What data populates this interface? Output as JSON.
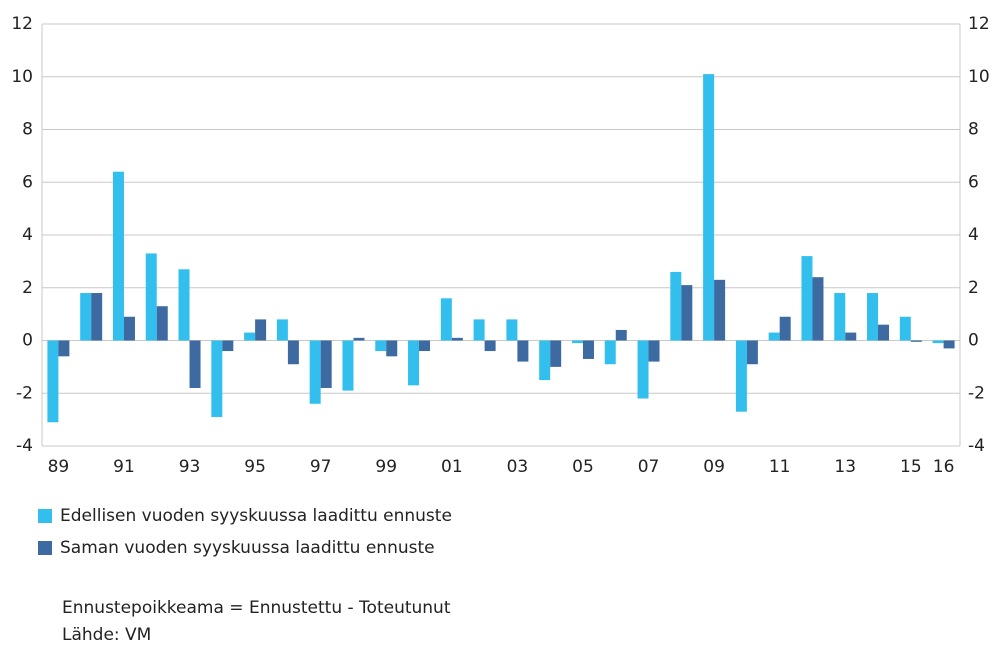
{
  "chart_data": {
    "type": "bar",
    "categories": [
      "89",
      null,
      "91",
      null,
      "93",
      null,
      "95",
      null,
      "97",
      null,
      "99",
      null,
      "01",
      null,
      "03",
      null,
      "05",
      null,
      "07",
      null,
      "09",
      null,
      "11",
      null,
      "13",
      null,
      "15",
      "16"
    ],
    "series": [
      {
        "name": "Edellisen vuoden syyskuussa laadittu ennuste",
        "color": "#33bfee",
        "values": [
          -3.1,
          1.8,
          6.4,
          3.3,
          2.7,
          -2.9,
          0.3,
          0.8,
          -2.4,
          -1.9,
          -0.4,
          -1.7,
          1.6,
          0.8,
          0.8,
          -1.5,
          -0.1,
          -0.9,
          -2.2,
          2.6,
          10.1,
          -2.7,
          0.3,
          3.2,
          1.8,
          1.8,
          0.9,
          -0.1
        ]
      },
      {
        "name": "Saman vuoden syyskuussa laadittu ennuste",
        "color": "#3d6aa0",
        "values": [
          -0.6,
          1.8,
          0.9,
          1.3,
          -1.8,
          -0.4,
          0.8,
          -0.9,
          -1.8,
          0.1,
          -0.6,
          -0.4,
          0.1,
          -0.4,
          -0.8,
          -1.0,
          -0.7,
          0.4,
          -0.8,
          2.1,
          2.3,
          -0.9,
          0.9,
          2.4,
          0.3,
          0.6,
          -0.05,
          -0.3
        ]
      }
    ],
    "ylim": [
      -4,
      12
    ],
    "yticks": [
      -4,
      -2,
      0,
      2,
      4,
      6,
      8,
      10,
      12
    ],
    "y2lim": [
      -4,
      12
    ],
    "y2ticks": [
      -4,
      -2,
      0,
      2,
      4,
      6,
      8,
      10,
      12
    ],
    "grid": true,
    "notes": [
      "Ennustepoikkeama = Ennustettu - Toteutunut",
      "Lähde: VM"
    ]
  }
}
